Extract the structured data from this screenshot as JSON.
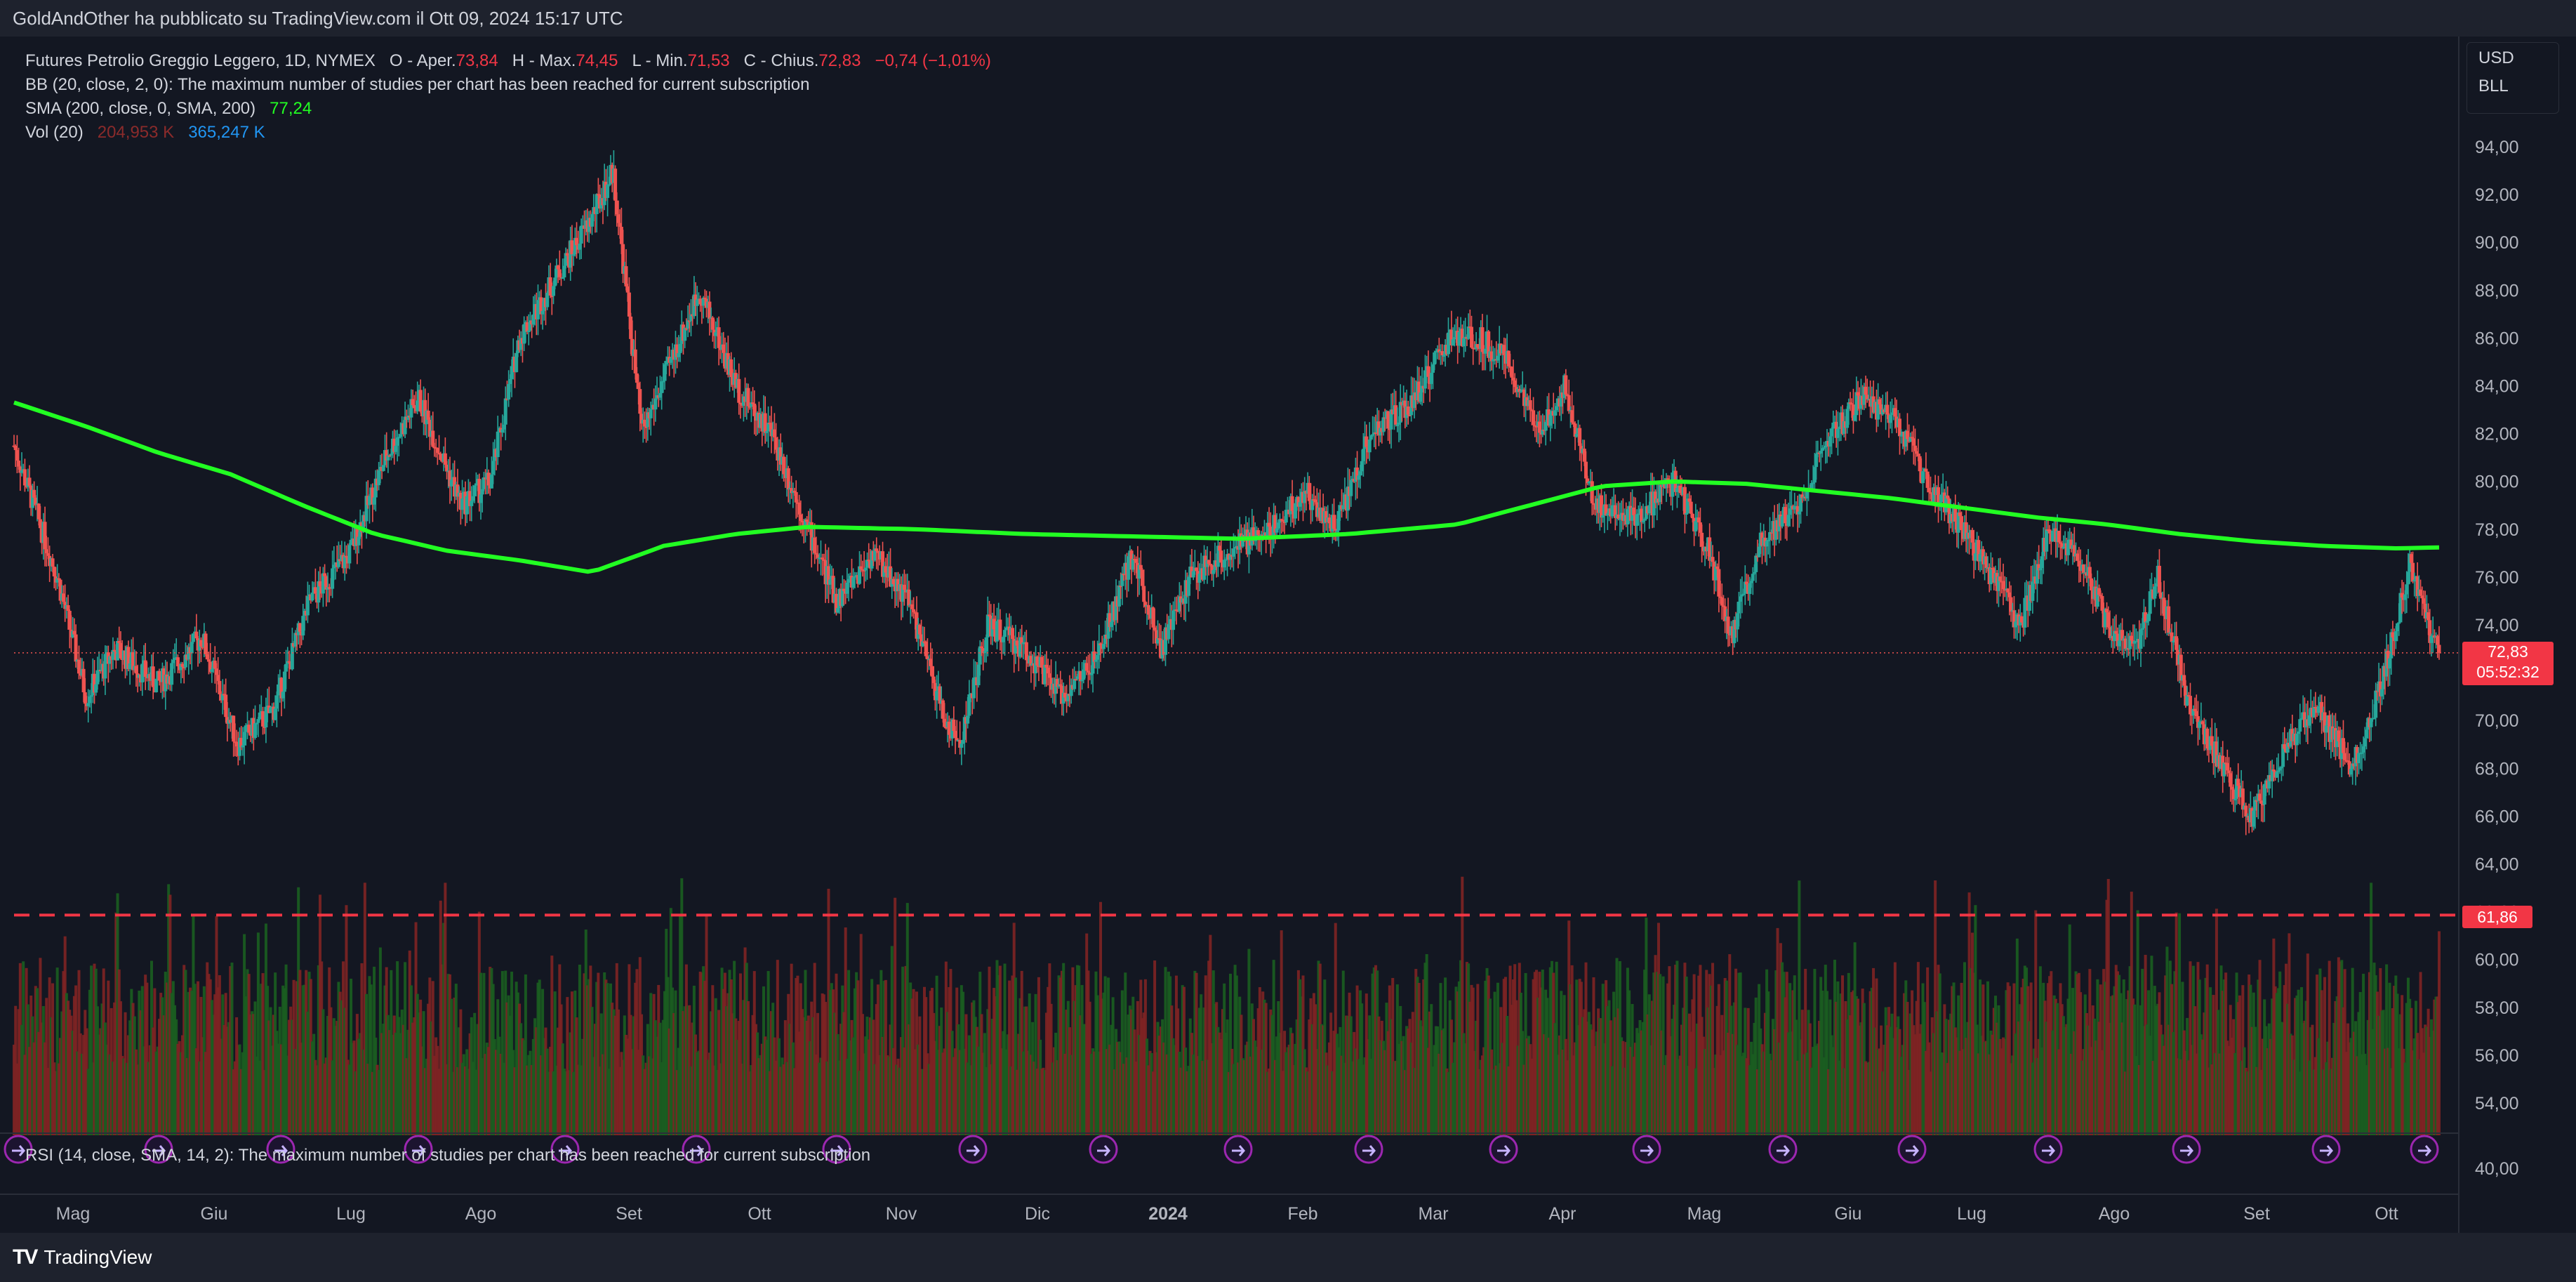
{
  "header": {
    "publisher_text": "GoldAndOther ha pubblicato su TradingView.com il Ott 09, 2024 15:17 UTC"
  },
  "legend": {
    "symbol_text": "Futures Petrolio Greggio Leggero, 1D, NYMEX",
    "open_label": "O - Aper.",
    "open_value": "73,84",
    "high_label": "H - Max.",
    "high_value": "74,45",
    "low_label": "L - Min.",
    "low_value": "71,53",
    "close_label": "C - Chius.",
    "close_value": "72,83",
    "change_value": "−0,74 (−1,01%)",
    "bb_text": "BB (20, close, 2, 0): The maximum number of studies per chart has been reached for current subscription",
    "sma_label": "SMA (200, close, 0, SMA, 200)",
    "sma_value": "77,24",
    "vol_label": "Vol (20)",
    "vol_value_1": "204,953 K",
    "vol_value_2": "365,247 K"
  },
  "currency": {
    "line1": "USD",
    "line2": "BLL"
  },
  "rsi": {
    "text": "RSI (14, close, SMA, 14, 2): The maximum number of studies per chart has been reached for current subscription"
  },
  "price_tag": {
    "price": "72,83",
    "countdown": "05:52:32"
  },
  "level_tag": {
    "value": "61,86"
  },
  "footer": {
    "brand": "TradingView"
  },
  "colors": {
    "background": "#131722",
    "up": "#26a69a",
    "down": "#ef5350",
    "sma": "#22ff22",
    "level": "#f23645",
    "vol_up": "#1b5e20",
    "vol_down": "#7f2424",
    "event_icon": "#9c27b0"
  },
  "chart_data": {
    "type": "candlestick",
    "timeframe": "1D",
    "x_axis_labels": [
      "Mag",
      "Giu",
      "Lug",
      "Ago",
      "Set",
      "Ott",
      "Nov",
      "Dic",
      "2024",
      "Feb",
      "Mar",
      "Apr",
      "Mag",
      "Giu",
      "Lug",
      "Ago",
      "Set",
      "Ott"
    ],
    "y_axis_labels": [
      "94,00",
      "92,00",
      "90,00",
      "88,00",
      "86,00",
      "84,00",
      "82,00",
      "80,00",
      "78,00",
      "76,00",
      "74,00",
      "72,00",
      "70,00",
      "68,00",
      "66,00",
      "64,00",
      "62,00",
      "60,00",
      "58,00",
      "56,00",
      "54,00"
    ],
    "rsi_axis_label": "40,00",
    "ylim": [
      53.5,
      95.5
    ],
    "grid": false,
    "anchors": [
      {
        "d": 0,
        "p": 81.5
      },
      {
        "d": 12,
        "p": 76
      },
      {
        "d": 20,
        "p": 71
      },
      {
        "d": 28,
        "p": 73
      },
      {
        "d": 40,
        "p": 71.5
      },
      {
        "d": 52,
        "p": 73.5
      },
      {
        "d": 62,
        "p": 69
      },
      {
        "d": 72,
        "p": 70.5
      },
      {
        "d": 82,
        "p": 75
      },
      {
        "d": 93,
        "p": 77
      },
      {
        "d": 103,
        "p": 81
      },
      {
        "d": 112,
        "p": 83.5
      },
      {
        "d": 124,
        "p": 79
      },
      {
        "d": 132,
        "p": 80
      },
      {
        "d": 140,
        "p": 86
      },
      {
        "d": 148,
        "p": 88
      },
      {
        "d": 160,
        "p": 91
      },
      {
        "d": 166,
        "p": 93
      },
      {
        "d": 174,
        "p": 82
      },
      {
        "d": 182,
        "p": 85
      },
      {
        "d": 190,
        "p": 88
      },
      {
        "d": 200,
        "p": 84
      },
      {
        "d": 210,
        "p": 82
      },
      {
        "d": 220,
        "p": 78
      },
      {
        "d": 228,
        "p": 75
      },
      {
        "d": 238,
        "p": 77
      },
      {
        "d": 248,
        "p": 75
      },
      {
        "d": 258,
        "p": 70
      },
      {
        "d": 262,
        "p": 69
      },
      {
        "d": 270,
        "p": 74
      },
      {
        "d": 280,
        "p": 73
      },
      {
        "d": 290,
        "p": 71
      },
      {
        "d": 300,
        "p": 72.5
      },
      {
        "d": 310,
        "p": 77
      },
      {
        "d": 318,
        "p": 73
      },
      {
        "d": 326,
        "p": 76
      },
      {
        "d": 336,
        "p": 77
      },
      {
        "d": 348,
        "p": 78
      },
      {
        "d": 358,
        "p": 79.5
      },
      {
        "d": 366,
        "p": 78
      },
      {
        "d": 376,
        "p": 82
      },
      {
        "d": 386,
        "p": 83
      },
      {
        "d": 398,
        "p": 86
      },
      {
        "d": 406,
        "p": 86
      },
      {
        "d": 414,
        "p": 85
      },
      {
        "d": 422,
        "p": 82
      },
      {
        "d": 430,
        "p": 84
      },
      {
        "d": 438,
        "p": 79
      },
      {
        "d": 450,
        "p": 78.5
      },
      {
        "d": 460,
        "p": 80
      },
      {
        "d": 470,
        "p": 77
      },
      {
        "d": 476,
        "p": 73.5
      },
      {
        "d": 484,
        "p": 77.5
      },
      {
        "d": 494,
        "p": 79
      },
      {
        "d": 504,
        "p": 82
      },
      {
        "d": 512,
        "p": 83.5
      },
      {
        "d": 522,
        "p": 82.5
      },
      {
        "d": 530,
        "p": 80
      },
      {
        "d": 540,
        "p": 78
      },
      {
        "d": 548,
        "p": 76
      },
      {
        "d": 556,
        "p": 74
      },
      {
        "d": 564,
        "p": 78
      },
      {
        "d": 572,
        "p": 77
      },
      {
        "d": 580,
        "p": 74
      },
      {
        "d": 588,
        "p": 73
      },
      {
        "d": 594,
        "p": 76
      },
      {
        "d": 602,
        "p": 71
      },
      {
        "d": 612,
        "p": 68
      },
      {
        "d": 620,
        "p": 66
      },
      {
        "d": 630,
        "p": 69
      },
      {
        "d": 638,
        "p": 70.5
      },
      {
        "d": 648,
        "p": 68
      },
      {
        "d": 656,
        "p": 71.5
      },
      {
        "d": 664,
        "p": 76.5
      },
      {
        "d": 670,
        "p": 73.5
      },
      {
        "d": 672,
        "p": 72.83
      }
    ],
    "sma200": [
      {
        "d": 0,
        "p": 83.3
      },
      {
        "d": 20,
        "p": 82.3
      },
      {
        "d": 40,
        "p": 81.2
      },
      {
        "d": 60,
        "p": 80.3
      },
      {
        "d": 80,
        "p": 79
      },
      {
        "d": 100,
        "p": 77.8
      },
      {
        "d": 120,
        "p": 77.1
      },
      {
        "d": 140,
        "p": 76.7
      },
      {
        "d": 160,
        "p": 76.2
      },
      {
        "d": 180,
        "p": 77.3
      },
      {
        "d": 200,
        "p": 77.8
      },
      {
        "d": 220,
        "p": 78.1
      },
      {
        "d": 250,
        "p": 78
      },
      {
        "d": 280,
        "p": 77.8
      },
      {
        "d": 310,
        "p": 77.7
      },
      {
        "d": 340,
        "p": 77.6
      },
      {
        "d": 370,
        "p": 77.8
      },
      {
        "d": 400,
        "p": 78.2
      },
      {
        "d": 420,
        "p": 79
      },
      {
        "d": 440,
        "p": 79.8
      },
      {
        "d": 460,
        "p": 80
      },
      {
        "d": 480,
        "p": 79.9
      },
      {
        "d": 500,
        "p": 79.6
      },
      {
        "d": 520,
        "p": 79.3
      },
      {
        "d": 540,
        "p": 78.9
      },
      {
        "d": 560,
        "p": 78.5
      },
      {
        "d": 580,
        "p": 78.2
      },
      {
        "d": 600,
        "p": 77.8
      },
      {
        "d": 620,
        "p": 77.5
      },
      {
        "d": 640,
        "p": 77.3
      },
      {
        "d": 660,
        "p": 77.2
      },
      {
        "d": 672,
        "p": 77.24
      }
    ],
    "horizontal_level": 61.86,
    "last_price": 72.83,
    "event_markers": 18
  }
}
